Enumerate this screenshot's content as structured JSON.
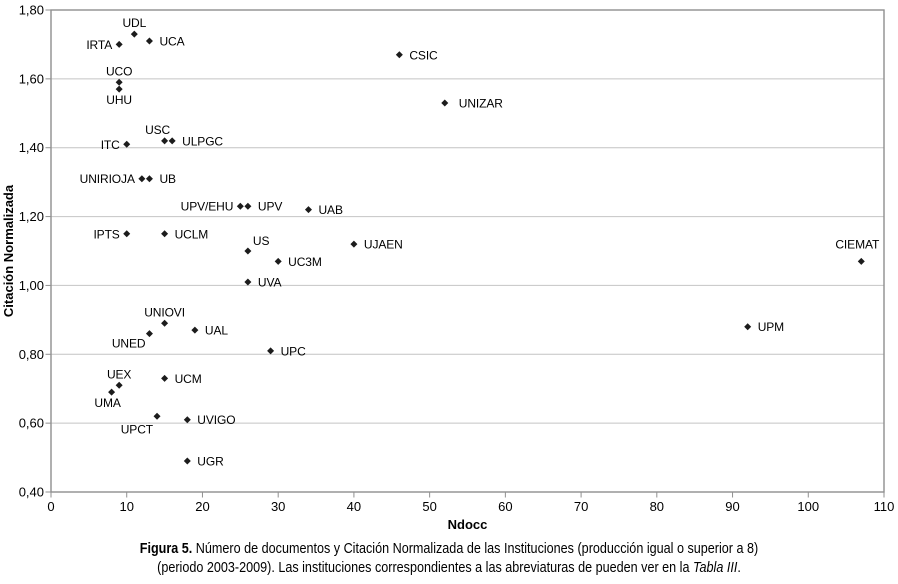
{
  "chart_data": {
    "type": "scatter",
    "title": "",
    "xlabel": "Ndocc",
    "ylabel": "Citación Normalizada",
    "xlim": [
      0,
      110
    ],
    "ylim": [
      0.4,
      1.8
    ],
    "x_ticks": [
      0,
      10,
      20,
      30,
      40,
      50,
      60,
      70,
      80,
      90,
      100,
      110
    ],
    "y_ticks": [
      {
        "value": 1.8,
        "label": "1,80"
      },
      {
        "value": 1.6,
        "label": "1,60"
      },
      {
        "value": 1.4,
        "label": "1,40"
      },
      {
        "value": 1.2,
        "label": "1,20"
      },
      {
        "value": 1.0,
        "label": "1,00"
      },
      {
        "value": 0.8,
        "label": "0,80"
      },
      {
        "value": 0.6,
        "label": "0,60"
      },
      {
        "value": 0.4,
        "label": "0,40"
      }
    ],
    "grid": "horizontal-only",
    "legend": "none",
    "plot_border": true,
    "marker": {
      "shape": "diamond",
      "size": 7
    },
    "colors": {
      "marker": "#1c1c1c",
      "gridline": "#c4c4c4",
      "axis": "#8f8f8f",
      "text": "#000000",
      "background": "#ffffff"
    },
    "points": [
      {
        "label": "UDL",
        "x": 11,
        "y": 1.73,
        "label_pos": "above"
      },
      {
        "label": "IRTA",
        "x": 9,
        "y": 1.7,
        "label_pos": "left"
      },
      {
        "label": "UCA",
        "x": 13,
        "y": 1.71,
        "label_pos": "right"
      },
      {
        "label": "CSIC",
        "x": 46,
        "y": 1.67,
        "label_pos": "right"
      },
      {
        "label": "UCO",
        "x": 9,
        "y": 1.59,
        "label_pos": "above"
      },
      {
        "label": "UHU",
        "x": 9,
        "y": 1.57,
        "label_pos": "below"
      },
      {
        "label": "UNIZAR",
        "x": 52,
        "y": 1.53,
        "label_pos": "right",
        "ldx": 4
      },
      {
        "label": "USC",
        "x": 15,
        "y": 1.42,
        "label_pos": "above",
        "ldx": -7
      },
      {
        "label": "ULPGC",
        "x": 16,
        "y": 1.42,
        "label_pos": "right"
      },
      {
        "label": "ITC",
        "x": 10,
        "y": 1.41,
        "label_pos": "left"
      },
      {
        "label": "UNIRIOJA",
        "x": 12,
        "y": 1.31,
        "label_pos": "left"
      },
      {
        "label": "UB",
        "x": 13,
        "y": 1.31,
        "label_pos": "right"
      },
      {
        "label": "UPV/EHU",
        "x": 25,
        "y": 1.23,
        "label_pos": "left"
      },
      {
        "label": "UPV",
        "x": 26,
        "y": 1.23,
        "label_pos": "right"
      },
      {
        "label": "UAB",
        "x": 34,
        "y": 1.22,
        "label_pos": "right"
      },
      {
        "label": "IPTS",
        "x": 10,
        "y": 1.15,
        "label_pos": "left"
      },
      {
        "label": "UCLM",
        "x": 15,
        "y": 1.15,
        "label_pos": "right"
      },
      {
        "label": "UJAEN",
        "x": 40,
        "y": 1.12,
        "label_pos": "right"
      },
      {
        "label": "US",
        "x": 26,
        "y": 1.1,
        "label_pos": "above-right"
      },
      {
        "label": "UC3M",
        "x": 30,
        "y": 1.07,
        "label_pos": "right"
      },
      {
        "label": "CIEMAT",
        "x": 107,
        "y": 1.07,
        "label_pos": "above",
        "ldx": -4,
        "ldy": -6
      },
      {
        "label": "UVA",
        "x": 26,
        "y": 1.01,
        "label_pos": "right"
      },
      {
        "label": "UNIOVI",
        "x": 15,
        "y": 0.89,
        "label_pos": "above"
      },
      {
        "label": "UPM",
        "x": 92,
        "y": 0.88,
        "label_pos": "right"
      },
      {
        "label": "UAL",
        "x": 19,
        "y": 0.87,
        "label_pos": "right"
      },
      {
        "label": "UNED",
        "x": 13,
        "y": 0.86,
        "label_pos": "below-left"
      },
      {
        "label": "UPC",
        "x": 29,
        "y": 0.81,
        "label_pos": "right"
      },
      {
        "label": "UCM",
        "x": 15,
        "y": 0.73,
        "label_pos": "right"
      },
      {
        "label": "UEX",
        "x": 9,
        "y": 0.71,
        "label_pos": "above"
      },
      {
        "label": "UMA",
        "x": 8,
        "y": 0.69,
        "label_pos": "below",
        "ldx": -4
      },
      {
        "label": "UPCT",
        "x": 14,
        "y": 0.62,
        "label_pos": "below-left",
        "ldy": 3
      },
      {
        "label": "UVIGO",
        "x": 18,
        "y": 0.61,
        "label_pos": "right"
      },
      {
        "label": "UGR",
        "x": 18,
        "y": 0.49,
        "label_pos": "right"
      }
    ]
  },
  "caption": {
    "label": "Figura 5.",
    "line1_rest": " Número de documentos y Citación Normalizada de las Instituciones (producción igual o superior a 8)",
    "line2_pre": "(periodo 2003-2009). Las instituciones correspondientes a las abreviaturas de pueden ver en la ",
    "line2_italic": "Tabla III",
    "line2_post": "."
  }
}
